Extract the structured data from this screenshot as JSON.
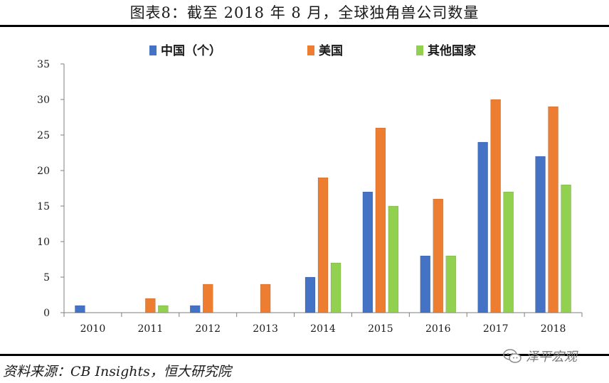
{
  "header": {
    "title": "图表8：截至 2018 年 8 月，全球独角兽公司数量"
  },
  "footer": {
    "source": "资料来源：CB Insights，恒大研究院"
  },
  "watermark": {
    "text": "泽平宏观",
    "icon": "wechat-icon"
  },
  "chart_data": {
    "type": "bar",
    "categories": [
      "2010",
      "2011",
      "2012",
      "2013",
      "2014",
      "2015",
      "2016",
      "2017",
      "2018"
    ],
    "series": [
      {
        "name": "中国（个）",
        "color": "#4472C4",
        "values": [
          1,
          0,
          1,
          0,
          5,
          17,
          8,
          24,
          22
        ]
      },
      {
        "name": "美国",
        "color": "#ED7D31",
        "values": [
          0,
          2,
          4,
          4,
          19,
          26,
          16,
          30,
          29
        ]
      },
      {
        "name": "其他国家",
        "color": "#92D050",
        "values": [
          0,
          1,
          0,
          0,
          7,
          15,
          8,
          17,
          18
        ]
      }
    ],
    "ylim": [
      0,
      35
    ],
    "yticks": [
      0,
      5,
      10,
      15,
      20,
      25,
      30,
      35
    ],
    "legend_position": "top",
    "grid": false
  }
}
